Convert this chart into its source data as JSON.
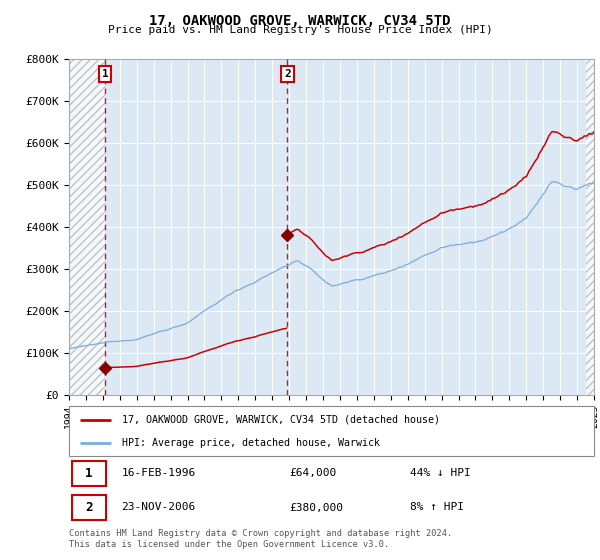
{
  "title": "17, OAKWOOD GROVE, WARWICK, CV34 5TD",
  "subtitle": "Price paid vs. HM Land Registry's House Price Index (HPI)",
  "legend_line1": "17, OAKWOOD GROVE, WARWICK, CV34 5TD (detached house)",
  "legend_line2": "HPI: Average price, detached house, Warwick",
  "annotation1_date": "16-FEB-1996",
  "annotation1_price": "£64,000",
  "annotation1_hpi": "44% ↓ HPI",
  "annotation2_date": "23-NOV-2006",
  "annotation2_price": "£380,000",
  "annotation2_hpi": "8% ↑ HPI",
  "footer": "Contains HM Land Registry data © Crown copyright and database right 2024.\nThis data is licensed under the Open Government Licence v3.0.",
  "hpi_color": "#7aacdc",
  "price_color": "#cc0000",
  "marker_color": "#880000",
  "vline_color": "#cc0000",
  "plot_bg_color": "#dce9f5",
  "ylim_max": 800000,
  "x_start_year": 1994,
  "x_end_year": 2025,
  "sale1_year": 1996.12,
  "sale1_price": 64000,
  "sale2_year": 2006.9,
  "sale2_price": 380000
}
